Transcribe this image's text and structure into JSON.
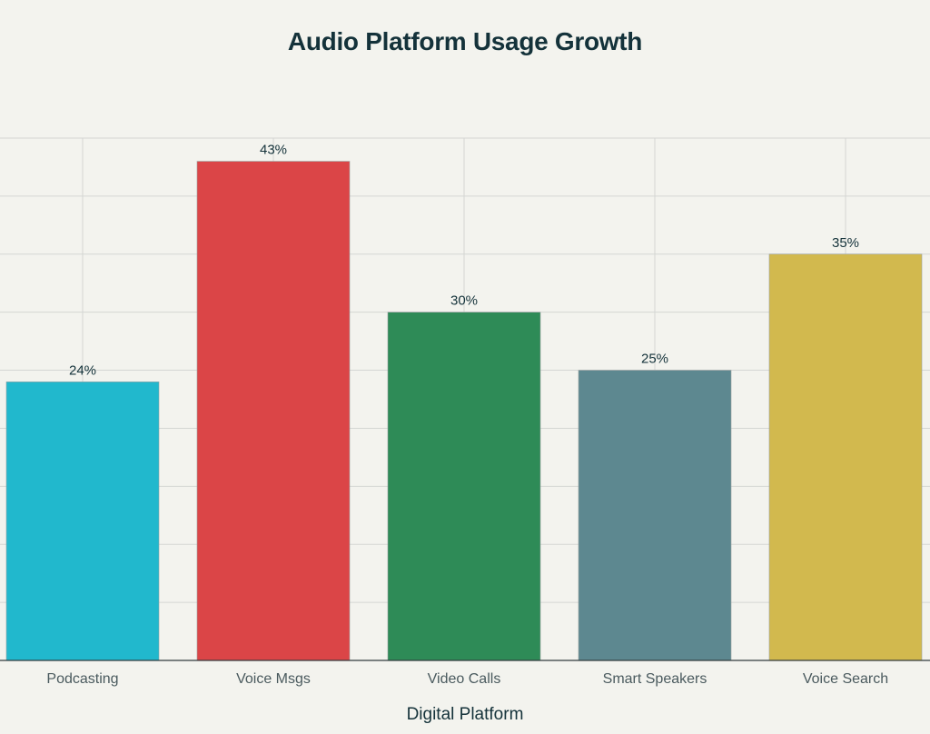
{
  "chart_data": {
    "type": "bar",
    "title": "Audio Platform Usage Growth",
    "xlabel": "Digital Platform",
    "ylabel": "",
    "categories": [
      "Podcasting",
      "Voice Msgs",
      "Video Calls",
      "Smart Speakers",
      "Voice Search"
    ],
    "values": [
      24,
      43,
      30,
      25,
      35
    ],
    "value_labels": [
      "24%",
      "43%",
      "30%",
      "25%",
      "35%"
    ],
    "colors": [
      "#21b8cd",
      "#db4547",
      "#2e8b57",
      "#5d8890",
      "#d2b94e"
    ],
    "ylim": [
      0,
      45
    ],
    "grid": true,
    "legend": "none"
  }
}
